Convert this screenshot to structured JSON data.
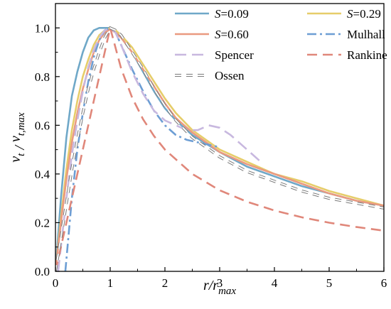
{
  "chart_data": {
    "type": "line",
    "xlabel": "r/r_max",
    "ylabel": "v_t / v_t,max",
    "xlim": [
      0,
      6
    ],
    "ylim": [
      0,
      1.1
    ],
    "xticks": [
      0,
      1,
      2,
      3,
      4,
      5,
      6
    ],
    "yticks": [
      0.0,
      0.2,
      0.4,
      0.6,
      0.8,
      1.0
    ],
    "xtick_labels": [
      "0",
      "1",
      "2",
      "3",
      "4",
      "5",
      "6"
    ],
    "ytick_labels": [
      "0.0",
      "0.2",
      "0.4",
      "0.6",
      "0.8",
      "1.0"
    ],
    "grid": false,
    "legend_position": "top-right",
    "series": [
      {
        "name": "S=0.09",
        "label_prefix": "S",
        "label_suffix": "=0.09",
        "color": "#6fa8c8",
        "dash": "solid",
        "x": [
          0,
          0.1,
          0.2,
          0.3,
          0.4,
          0.5,
          0.6,
          0.7,
          0.8,
          0.9,
          1.0,
          1.1,
          1.2,
          1.4,
          1.6,
          1.8,
          2.0,
          2.2,
          2.5,
          3.0,
          3.5,
          4.0,
          4.5,
          5.0,
          5.5,
          6.0
        ],
        "y": [
          0,
          0.3,
          0.55,
          0.72,
          0.82,
          0.9,
          0.96,
          0.99,
          1.0,
          1.0,
          1.0,
          0.99,
          0.96,
          0.9,
          0.82,
          0.74,
          0.67,
          0.62,
          0.56,
          0.49,
          0.43,
          0.39,
          0.35,
          0.32,
          0.29,
          0.27
        ]
      },
      {
        "name": "S=0.29",
        "label_prefix": "S",
        "label_suffix": "=0.29",
        "color": "#e6cd6a",
        "dash": "solid",
        "x": [
          0,
          0.1,
          0.2,
          0.3,
          0.4,
          0.5,
          0.6,
          0.7,
          0.8,
          0.9,
          1.0,
          1.1,
          1.2,
          1.4,
          1.6,
          1.8,
          2.0,
          2.2,
          2.5,
          3.0,
          3.5,
          4.0,
          4.5,
          5.0,
          5.5,
          6.0
        ],
        "y": [
          0,
          0.22,
          0.42,
          0.58,
          0.7,
          0.8,
          0.87,
          0.93,
          0.97,
          0.99,
          1.0,
          0.99,
          0.97,
          0.92,
          0.85,
          0.78,
          0.71,
          0.65,
          0.58,
          0.5,
          0.45,
          0.4,
          0.37,
          0.33,
          0.3,
          0.27
        ]
      },
      {
        "name": "S=0.60",
        "label_prefix": "S",
        "label_suffix": "=0.60",
        "color": "#ea9a80",
        "dash": "solid",
        "x": [
          0,
          0.1,
          0.2,
          0.3,
          0.4,
          0.5,
          0.6,
          0.7,
          0.8,
          0.9,
          1.0,
          1.1,
          1.2,
          1.4,
          1.6,
          1.8,
          2.0,
          2.2,
          2.5,
          3.0,
          3.5,
          4.0,
          4.5,
          5.0,
          5.5,
          6.0
        ],
        "y": [
          0,
          0.2,
          0.38,
          0.53,
          0.65,
          0.75,
          0.83,
          0.9,
          0.95,
          0.98,
          0.995,
          0.98,
          0.96,
          0.9,
          0.83,
          0.76,
          0.69,
          0.63,
          0.57,
          0.49,
          0.44,
          0.4,
          0.36,
          0.32,
          0.29,
          0.27
        ]
      },
      {
        "name": "Mulhall",
        "label_prefix": "",
        "label_suffix": "Mulhall",
        "color": "#6d9ed4",
        "dash": "dashdot",
        "x": [
          0.18,
          0.3,
          0.4,
          0.5,
          0.6,
          0.7,
          0.8,
          0.9,
          1.0,
          1.1,
          1.2,
          1.4,
          1.6,
          1.8,
          2.0,
          2.2,
          2.4,
          2.6,
          2.8,
          3.0
        ],
        "y": [
          0,
          0.3,
          0.5,
          0.65,
          0.78,
          0.88,
          0.95,
          0.99,
          1.0,
          0.98,
          0.93,
          0.83,
          0.74,
          0.66,
          0.6,
          0.56,
          0.54,
          0.53,
          0.52,
          0.51
        ]
      },
      {
        "name": "Spencer",
        "label_prefix": "",
        "label_suffix": "Spencer",
        "color": "#c8b8df",
        "dash": "longdash",
        "x": [
          0.05,
          0.2,
          0.3,
          0.4,
          0.5,
          0.6,
          0.7,
          0.8,
          0.9,
          1.0,
          1.1,
          1.2,
          1.4,
          1.6,
          1.8,
          2.0,
          2.2,
          2.4,
          2.6,
          2.8,
          3.0,
          3.2,
          3.5,
          3.8
        ],
        "y": [
          0,
          0.3,
          0.48,
          0.62,
          0.74,
          0.84,
          0.91,
          0.96,
          0.99,
          1.0,
          0.98,
          0.93,
          0.82,
          0.73,
          0.66,
          0.62,
          0.6,
          0.58,
          0.58,
          0.6,
          0.59,
          0.56,
          0.5,
          0.44
        ]
      },
      {
        "name": "Rankine",
        "label_prefix": "",
        "label_suffix": "Rankine",
        "color": "#e0877a",
        "dash": "dashed",
        "x": [
          0,
          0.2,
          0.4,
          0.6,
          0.8,
          1.0,
          1.2,
          1.4,
          1.6,
          1.8,
          2.0,
          2.5,
          3.0,
          3.5,
          4.0,
          4.5,
          5.0,
          5.5,
          6.0
        ],
        "y": [
          0,
          0.2,
          0.4,
          0.6,
          0.8,
          1.0,
          0.833,
          0.714,
          0.625,
          0.556,
          0.5,
          0.4,
          0.333,
          0.286,
          0.25,
          0.222,
          0.2,
          0.182,
          0.167
        ]
      },
      {
        "name": "Ossen",
        "label_prefix": "",
        "label_suffix": "Ossen",
        "color": "#7a7a7a",
        "dash": "hollowdash",
        "x": [
          0,
          0.1,
          0.2,
          0.3,
          0.4,
          0.5,
          0.6,
          0.7,
          0.8,
          0.9,
          1.0,
          1.1,
          1.2,
          1.4,
          1.6,
          1.8,
          2.0,
          2.2,
          2.5,
          3.0,
          3.5,
          4.0,
          4.5,
          5.0,
          5.5,
          6.0
        ],
        "y": [
          0,
          0.14,
          0.28,
          0.42,
          0.54,
          0.65,
          0.75,
          0.83,
          0.9,
          0.96,
          1.0,
          0.99,
          0.97,
          0.9,
          0.83,
          0.75,
          0.68,
          0.62,
          0.55,
          0.47,
          0.41,
          0.37,
          0.33,
          0.3,
          0.28,
          0.26
        ]
      }
    ]
  }
}
